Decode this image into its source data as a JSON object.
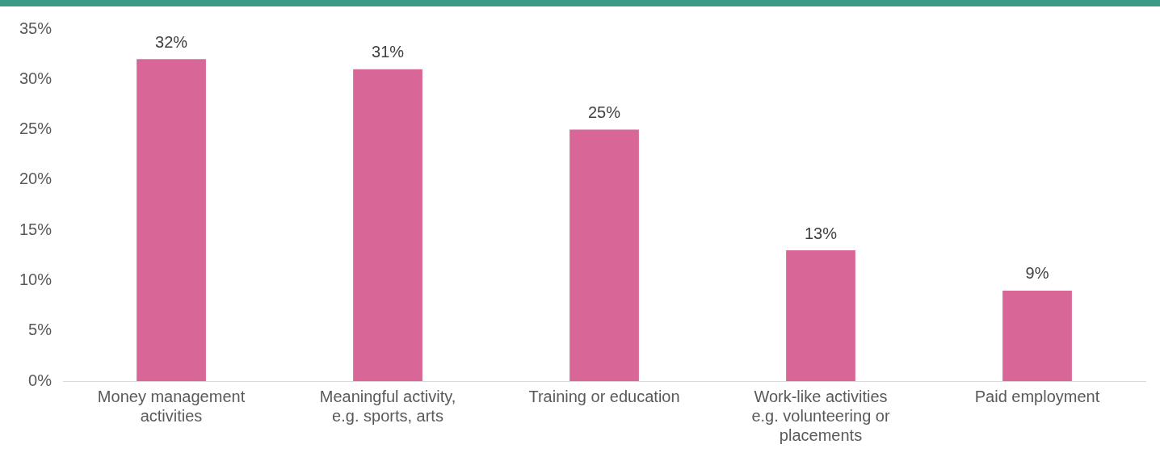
{
  "chart_data": {
    "type": "bar",
    "categories": [
      "Money management activities",
      "Meaningful activity, e.g. sports, arts",
      "Training or education",
      "Work-like activities e.g. volunteering or placements",
      "Paid employment"
    ],
    "values": [
      32,
      31,
      25,
      13,
      9
    ],
    "color": "#d86797",
    "value_labels": [
      "32%",
      "31%",
      "25%",
      "13%",
      "9%"
    ],
    "ylim": [
      0,
      35
    ],
    "yticks": [
      {
        "value": 0,
        "label": "0%"
      },
      {
        "value": 5,
        "label": "5%"
      },
      {
        "value": 10,
        "label": "10%"
      },
      {
        "value": 15,
        "label": "15%"
      },
      {
        "value": 20,
        "label": "20%"
      },
      {
        "value": 25,
        "label": "25%"
      },
      {
        "value": 30,
        "label": "30%"
      },
      {
        "value": 35,
        "label": "35%"
      }
    ],
    "grid": false,
    "legend": false
  }
}
